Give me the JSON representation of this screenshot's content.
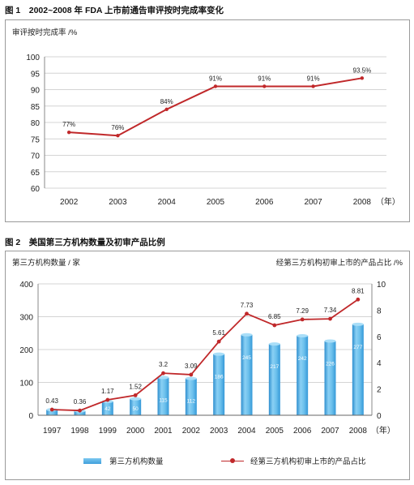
{
  "figure1": {
    "title": "图 1　2002~2008 年 FDA 上市前通告审评按时完成率变化",
    "chart_data": {
      "type": "line",
      "ylabel": "审评按时完成率 /%",
      "x_unit": "（年）",
      "categories": [
        "2002",
        "2003",
        "2004",
        "2005",
        "2006",
        "2007",
        "2008"
      ],
      "series": [
        {
          "values": [
            77,
            76,
            84,
            91,
            91,
            91,
            93.5
          ],
          "data_labels": [
            "77%",
            "76%",
            "84%",
            "91%",
            "91%",
            "91%",
            "93.5%"
          ]
        }
      ],
      "ylim": [
        60,
        100
      ],
      "yticks": [
        "60",
        "65",
        "70",
        "75",
        "80",
        "85",
        "90",
        "95",
        "100"
      ],
      "grid": true,
      "line_color": "#c0282a"
    }
  },
  "figure2": {
    "title": "图 2　美国第三方机构数量及初审产品比例",
    "chart_data": {
      "type": "bar",
      "ylabel_left": "第三方机构数量 / 家",
      "ylabel_right": "经第三方机构初审上市的产品占比 /%",
      "x_unit": "（年）",
      "categories": [
        "1997",
        "1998",
        "1999",
        "2000",
        "2001",
        "2002",
        "2003",
        "2004",
        "2005",
        "2006",
        "2007",
        "2008"
      ],
      "series": [
        {
          "name": "第三方机构数量",
          "type": "bar",
          "axis": "left",
          "values": [
            17,
            13,
            42,
            50,
            115,
            112,
            186,
            245,
            217,
            242,
            226,
            277
          ],
          "data_labels": [
            "17",
            "13",
            "42",
            "50",
            "115",
            "112",
            "186",
            "245",
            "217",
            "242",
            "226",
            "277"
          ],
          "color": "#5ab4e8"
        },
        {
          "name": "经第三方机构初审上市的产品占比",
          "type": "line",
          "axis": "right",
          "values": [
            0.43,
            0.36,
            1.17,
            1.52,
            3.2,
            3.09,
            5.61,
            7.73,
            6.85,
            7.29,
            7.34,
            8.81
          ],
          "data_labels": [
            "0.43",
            "0.36",
            "1.17",
            "1.52",
            "3.2",
            "3.09",
            "5.61",
            "7.73",
            "6.85",
            "7.29",
            "7.34",
            "8.81"
          ],
          "color": "#c0282a"
        }
      ],
      "ylim_left": [
        0,
        400
      ],
      "yticks_left": [
        "0",
        "100",
        "200",
        "300",
        "400"
      ],
      "ylim_right": [
        0,
        10
      ],
      "yticks_right": [
        "0",
        "2",
        "4",
        "6",
        "8",
        "10"
      ],
      "grid": true,
      "legend_position": "bottom"
    }
  }
}
